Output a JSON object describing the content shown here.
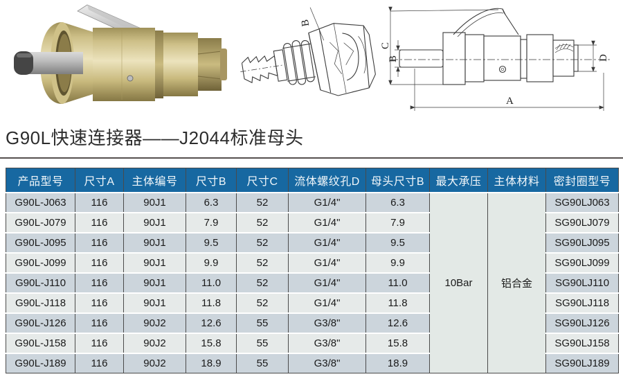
{
  "page": {
    "title": "G90L快速连接器——J2044标准母头"
  },
  "figures": {
    "photo_name": "brass-quick-connector-photo",
    "iso_label_b": "B",
    "dim_a": "A",
    "dim_b": "B",
    "dim_c": "C",
    "dim_d": "D"
  },
  "table": {
    "headers": [
      "产品型号",
      "尺寸A",
      "主体编号",
      "尺寸B",
      "尺寸C",
      "流体螺纹孔D",
      "母头尺寸B",
      "最大承压",
      "主体材料",
      "密封圈型号"
    ],
    "rows": [
      [
        "G90L-J063",
        "116",
        "90J1",
        "6.3",
        "52",
        "G1/4\"",
        "6.3",
        "SG90LJ063"
      ],
      [
        "G90L-J079",
        "116",
        "90J1",
        "7.9",
        "52",
        "G1/4\"",
        "7.9",
        "SG90LJ079"
      ],
      [
        "G90L-J095",
        "116",
        "90J1",
        "9.5",
        "52",
        "G1/4\"",
        "9.5",
        "SG90LJ095"
      ],
      [
        "G90L-J099",
        "116",
        "90J1",
        "9.9",
        "52",
        "G1/4\"",
        "9.9",
        "SG90LJ099"
      ],
      [
        "G90L-J110",
        "116",
        "90J1",
        "11.0",
        "52",
        "G1/4\"",
        "11.0",
        "SG90LJ110"
      ],
      [
        "G90L-J118",
        "116",
        "90J1",
        "11.8",
        "52",
        "G1/4\"",
        "11.8",
        "SG90LJ118"
      ],
      [
        "G90L-J126",
        "116",
        "90J2",
        "12.6",
        "55",
        "G3/8\"",
        "12.6",
        "SG90LJ126"
      ],
      [
        "G90L-J158",
        "116",
        "90J2",
        "15.8",
        "55",
        "G3/8\"",
        "15.8",
        "SG90LJ158"
      ],
      [
        "G90L-J189",
        "116",
        "90J2",
        "18.9",
        "55",
        "G3/8\"",
        "18.9",
        "SG90LJ189"
      ]
    ],
    "merged": {
      "max_pressure": "10Bar",
      "body_material": "铝合金"
    }
  },
  "colors": {
    "header_bg": "#1768A1",
    "row_odd": "#ccd5dc",
    "row_even": "#e6eae9",
    "merged_bg": "#e3e9e6",
    "border_dark": "#4a4a4a"
  }
}
